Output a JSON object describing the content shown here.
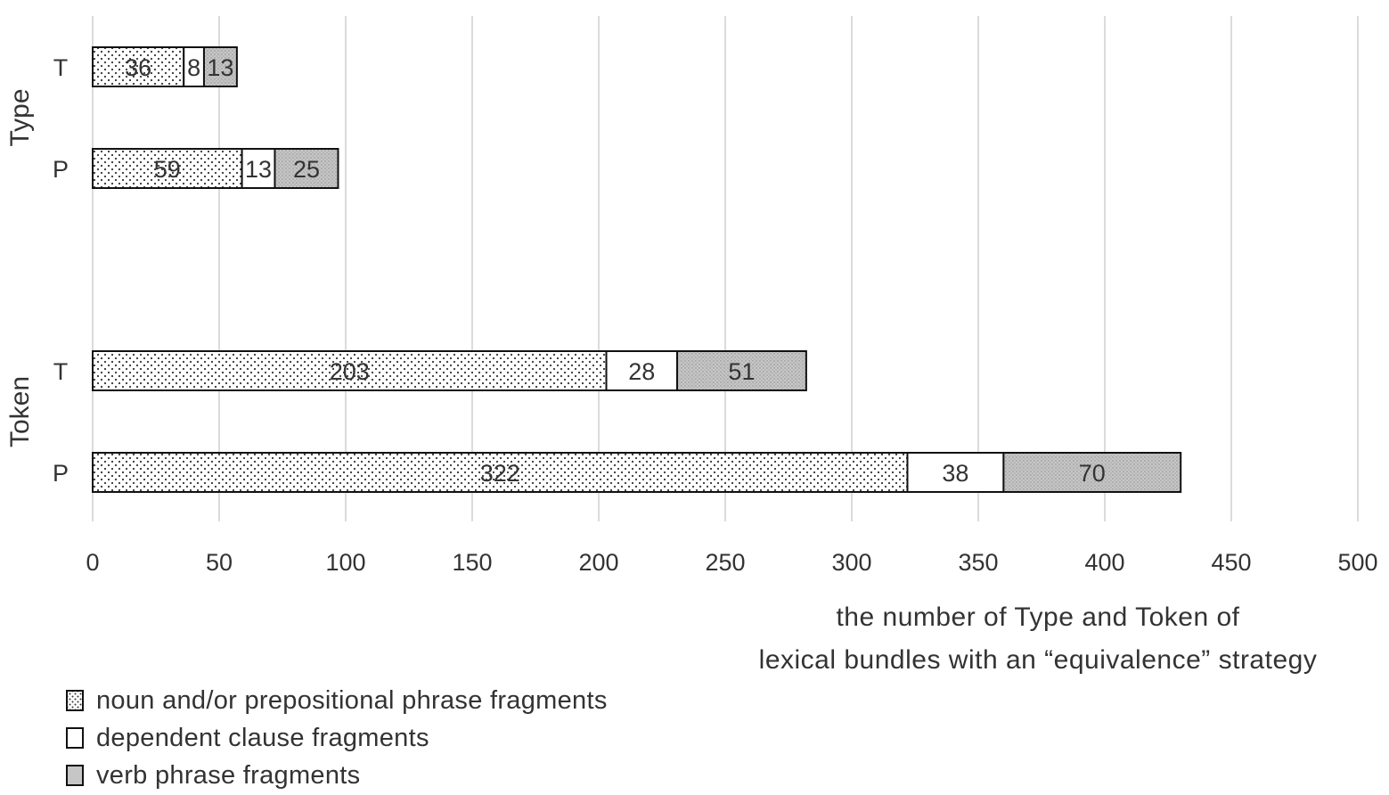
{
  "chart_data": {
    "type": "bar",
    "orientation": "horizontal",
    "stacked": true,
    "groups": [
      {
        "label": "Type",
        "categories": [
          "T",
          "P"
        ]
      },
      {
        "label": "Token",
        "categories": [
          "T",
          "P"
        ]
      }
    ],
    "rows": [
      {
        "group": "Type",
        "category": "T",
        "values": [
          36,
          8,
          13
        ]
      },
      {
        "group": "Type",
        "category": "P",
        "values": [
          59,
          13,
          25
        ]
      },
      {
        "group": "Token",
        "category": "T",
        "values": [
          203,
          28,
          51
        ]
      },
      {
        "group": "Token",
        "category": "P",
        "values": [
          322,
          38,
          70
        ]
      }
    ],
    "series": [
      {
        "name": "noun and/or prepositional phrase fragments",
        "pattern": "dots",
        "color": "#ffffff"
      },
      {
        "name": "dependent clause fragments",
        "pattern": "none",
        "color": "#ffffff"
      },
      {
        "name": "verb phrase fragments",
        "pattern": "gray",
        "color": "#c8c8c8"
      }
    ],
    "xlim": [
      0,
      500
    ],
    "xticks": [
      "0",
      "50",
      "100",
      "150",
      "200",
      "250",
      "300",
      "350",
      "400",
      "450",
      "500"
    ],
    "xlabel_lines": [
      "the number of Type and Token of",
      "lexical bundles with an “equivalence” strategy"
    ],
    "grid": true,
    "legend_position": "bottom-left"
  }
}
